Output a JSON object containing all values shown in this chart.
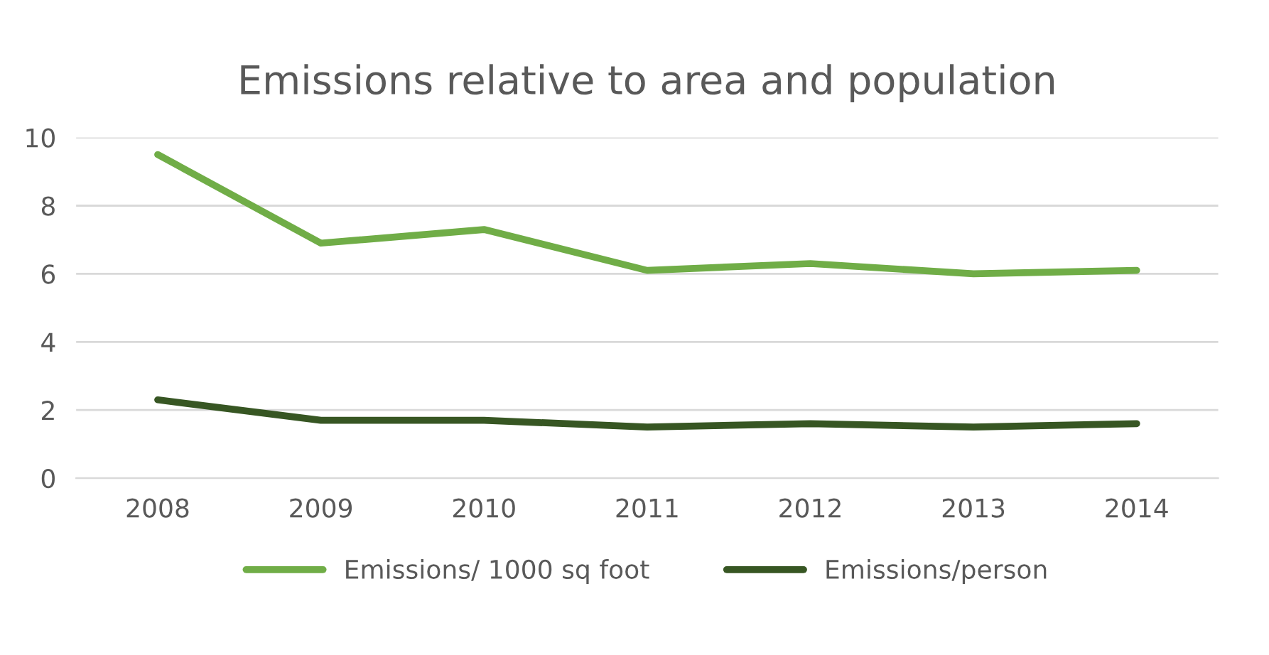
{
  "chart_data": {
    "type": "line",
    "title": "Emissions relative to area and population",
    "categories": [
      "2008",
      "2009",
      "2010",
      "2011",
      "2012",
      "2013",
      "2014"
    ],
    "series": [
      {
        "name": "Emissions/ 1000 sq foot",
        "color": "#70ad47",
        "values": [
          9.5,
          6.9,
          7.3,
          6.1,
          6.3,
          6.0,
          6.1
        ]
      },
      {
        "name": "Emissions/person",
        "color": "#375623",
        "values": [
          2.3,
          1.7,
          1.7,
          1.5,
          1.6,
          1.5,
          1.6
        ]
      }
    ],
    "ylim": [
      0,
      10
    ],
    "yticks": [
      0,
      2,
      4,
      6,
      8,
      10
    ],
    "grid": "y",
    "legend": "bottom",
    "marker": "none",
    "line_style": "solid"
  }
}
